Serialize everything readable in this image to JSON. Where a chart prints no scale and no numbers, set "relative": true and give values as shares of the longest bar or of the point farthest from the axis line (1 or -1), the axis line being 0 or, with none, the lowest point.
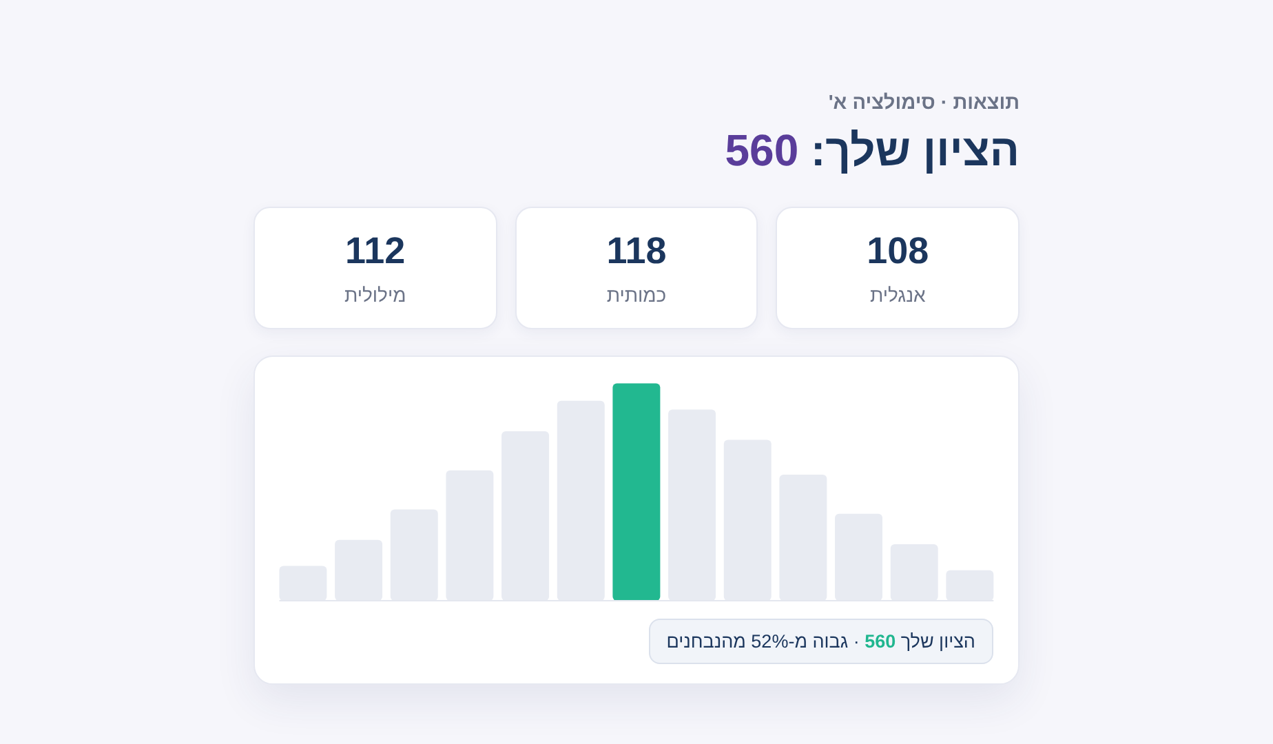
{
  "chart_data": [
    {
      "type": "other",
      "subtitle": "תוצאות · סימולציה א'",
      "title": "הציון שלך: 560",
      "categories": [
        "מילולית",
        "כמותית",
        "אנגלית"
      ],
      "values": [
        112,
        118,
        108
      ],
      "data_labels": true
    },
    {
      "type": "bar",
      "relative": true,
      "categories": [
        null,
        null,
        null,
        null,
        null,
        null,
        null,
        null,
        null,
        null,
        null,
        null,
        null
      ],
      "values": [
        0.16,
        0.28,
        0.42,
        0.6,
        0.78,
        0.92,
        1,
        0.88,
        0.74,
        0.58,
        0.4,
        0.26,
        0.14
      ],
      "colors": [
        "#e8ebf2",
        "#e8ebf2",
        "#e8ebf2",
        "#e8ebf2",
        "#e8ebf2",
        "#e8ebf2",
        "#22b890",
        "#e8ebf2",
        "#e8ebf2",
        "#e8ebf2",
        "#e8ebf2",
        "#e8ebf2",
        "#e8ebf2"
      ],
      "annotations": [
        "הציון שלך 560 · גבוה מ-52% מהנבחנים"
      ]
    }
  ]
}
